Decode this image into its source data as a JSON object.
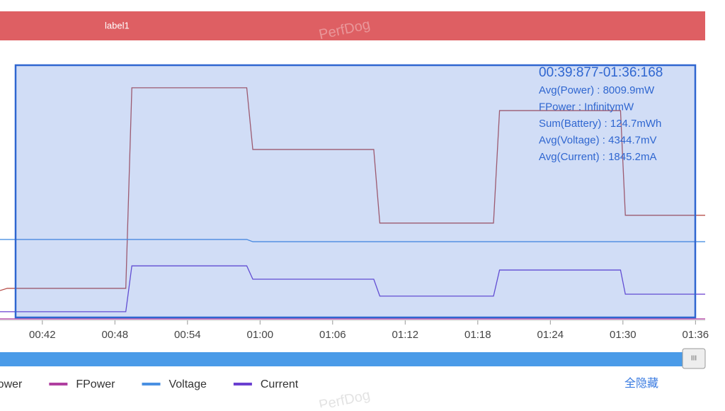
{
  "chart_data": {
    "type": "line",
    "header_label": "label1",
    "watermark": "PerfDog",
    "x": [
      38.5,
      39.1,
      48.9,
      49.4,
      58.9,
      59.4,
      69.4,
      69.9,
      79.3,
      79.8,
      89.8,
      90.2,
      96.8
    ],
    "xlim": [
      38.5,
      96.8
    ],
    "xticks": [
      {
        "value": 42,
        "label": "00:42"
      },
      {
        "value": 48,
        "label": "00:48"
      },
      {
        "value": 54,
        "label": "00:54"
      },
      {
        "value": 60,
        "label": "01:00"
      },
      {
        "value": 66,
        "label": "01:06"
      },
      {
        "value": 72,
        "label": "01:12"
      },
      {
        "value": 78,
        "label": "01:18"
      },
      {
        "value": 84,
        "label": "01:24"
      },
      {
        "value": 90,
        "label": "01:30"
      },
      {
        "value": 96,
        "label": "01:36"
      }
    ],
    "ylim": [
      0,
      100
    ],
    "series": [
      {
        "name": "Power",
        "color": "#b8504c",
        "values": [
          10.7,
          11.5,
          11.5,
          83.7,
          83.7,
          61.5,
          61.5,
          35,
          35,
          75.5,
          75.5,
          37.8,
          37.8
        ]
      },
      {
        "name": "FPower",
        "color": "#b03fa0",
        "values": [
          0.5,
          0.5,
          0.5,
          0.5,
          0.5,
          0.5,
          0.5,
          0.5,
          0.5,
          0.5,
          0.5,
          0.5,
          0.5
        ]
      },
      {
        "name": "Voltage",
        "color": "#4a90e2",
        "values": [
          29.1,
          29.1,
          29.1,
          29.1,
          29.1,
          28.3,
          28.3,
          28.3,
          28.3,
          28.3,
          28.3,
          28.3,
          28.3
        ]
      },
      {
        "name": "Current",
        "color": "#6a3fd0",
        "values": [
          3.1,
          3.1,
          3.1,
          19.6,
          19.6,
          14.8,
          14.8,
          8.7,
          8.7,
          18.1,
          18.1,
          9.4,
          9.4
        ]
      }
    ],
    "annotations": [
      "00:39:877-01:36:168",
      "Avg(Power)   : 8009.9mW",
      "FPower        : InfinitymW",
      "Sum(Battery) : 124.7mWh",
      "Avg(Voltage) : 4344.7mV",
      "Avg(Current) : 1845.2mA"
    ],
    "hide_all_button": "全隐藏"
  }
}
